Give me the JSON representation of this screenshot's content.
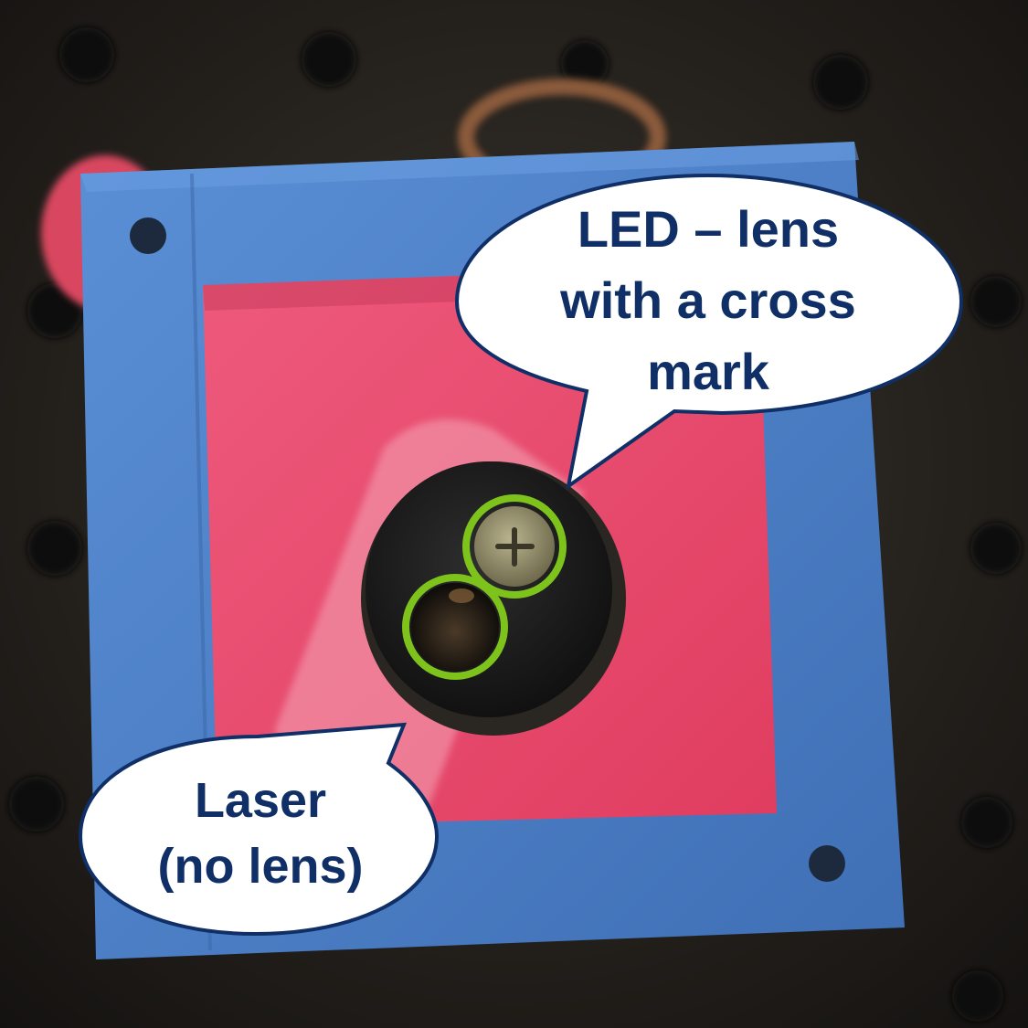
{
  "callouts": {
    "led": {
      "text": "LED – lens\nwith a cross\nmark"
    },
    "laser": {
      "text": "Laser\n(no lens)"
    }
  },
  "colors": {
    "background": "#1c1a18",
    "housing_blue": "#4d7fc4",
    "window_pink": "#e84a6e",
    "lens_black": "#1a1a1a",
    "highlight_green": "#7ec21c",
    "callout_fill": "#ffffff",
    "callout_border": "#0f2f66",
    "callout_text": "#0f2f66"
  },
  "icons": {
    "led_lens": "cross-mark-lens",
    "laser_aperture": "open-aperture"
  }
}
